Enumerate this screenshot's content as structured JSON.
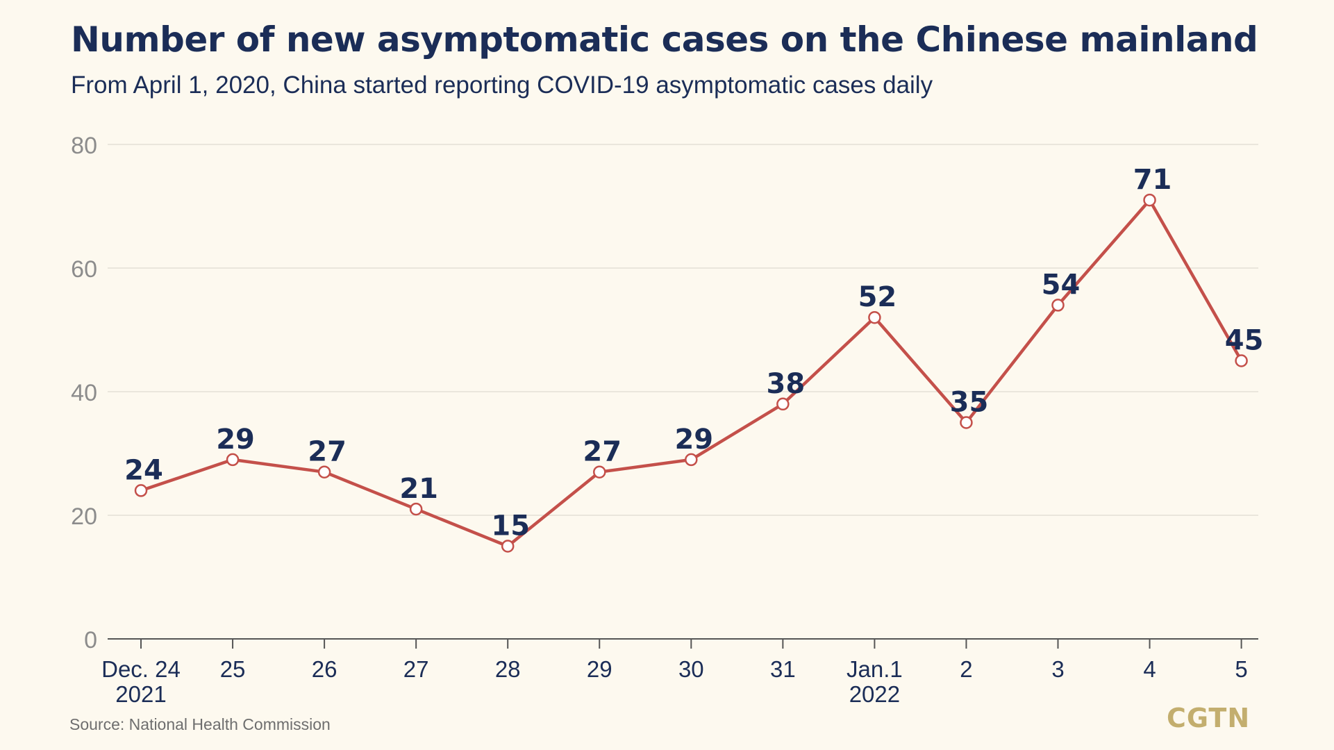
{
  "header": {
    "title": "Number of new asymptomatic cases on the Chinese mainland",
    "subtitle": "From April 1, 2020, China started reporting COVID-19 asymptomatic cases daily"
  },
  "footer": {
    "source": "Source: National Health Commission",
    "logo": "CGTN"
  },
  "colors": {
    "background": "#FDF9EF",
    "title": "#1B2D57",
    "line": "#C4504A",
    "marker_fill": "#FFFFFF",
    "tick_label": "#8C8C8C",
    "x_label": "#1B2D57",
    "gridline": "#DEDBD0",
    "axis": "#555555",
    "logo": "#C3AE6E"
  },
  "chart_data": {
    "type": "line",
    "title": "Number of new asymptomatic cases on the Chinese mainland",
    "subtitle": "From April 1, 2020, China started reporting COVID-19 asymptomatic cases daily",
    "xlabel": "",
    "ylabel": "",
    "categories": [
      [
        "Dec. 24",
        "2021"
      ],
      [
        "25"
      ],
      [
        "26"
      ],
      [
        "27"
      ],
      [
        "28"
      ],
      [
        "29"
      ],
      [
        "30"
      ],
      [
        "31"
      ],
      [
        "Jan.1",
        "2022"
      ],
      [
        "2"
      ],
      [
        "3"
      ],
      [
        "4"
      ],
      [
        "5"
      ]
    ],
    "series": [
      {
        "values": [
          24,
          29,
          27,
          21,
          15,
          27,
          29,
          38,
          52,
          35,
          54,
          71,
          45
        ],
        "labels": [
          "24",
          "29",
          "27",
          "21",
          "15",
          "27",
          "29",
          "38",
          "52",
          "35",
          "54",
          "71",
          "45"
        ]
      }
    ],
    "ylim": [
      0,
      80
    ],
    "yticks": [
      0,
      20,
      40,
      60,
      80
    ],
    "grid": true,
    "legend": "none"
  }
}
